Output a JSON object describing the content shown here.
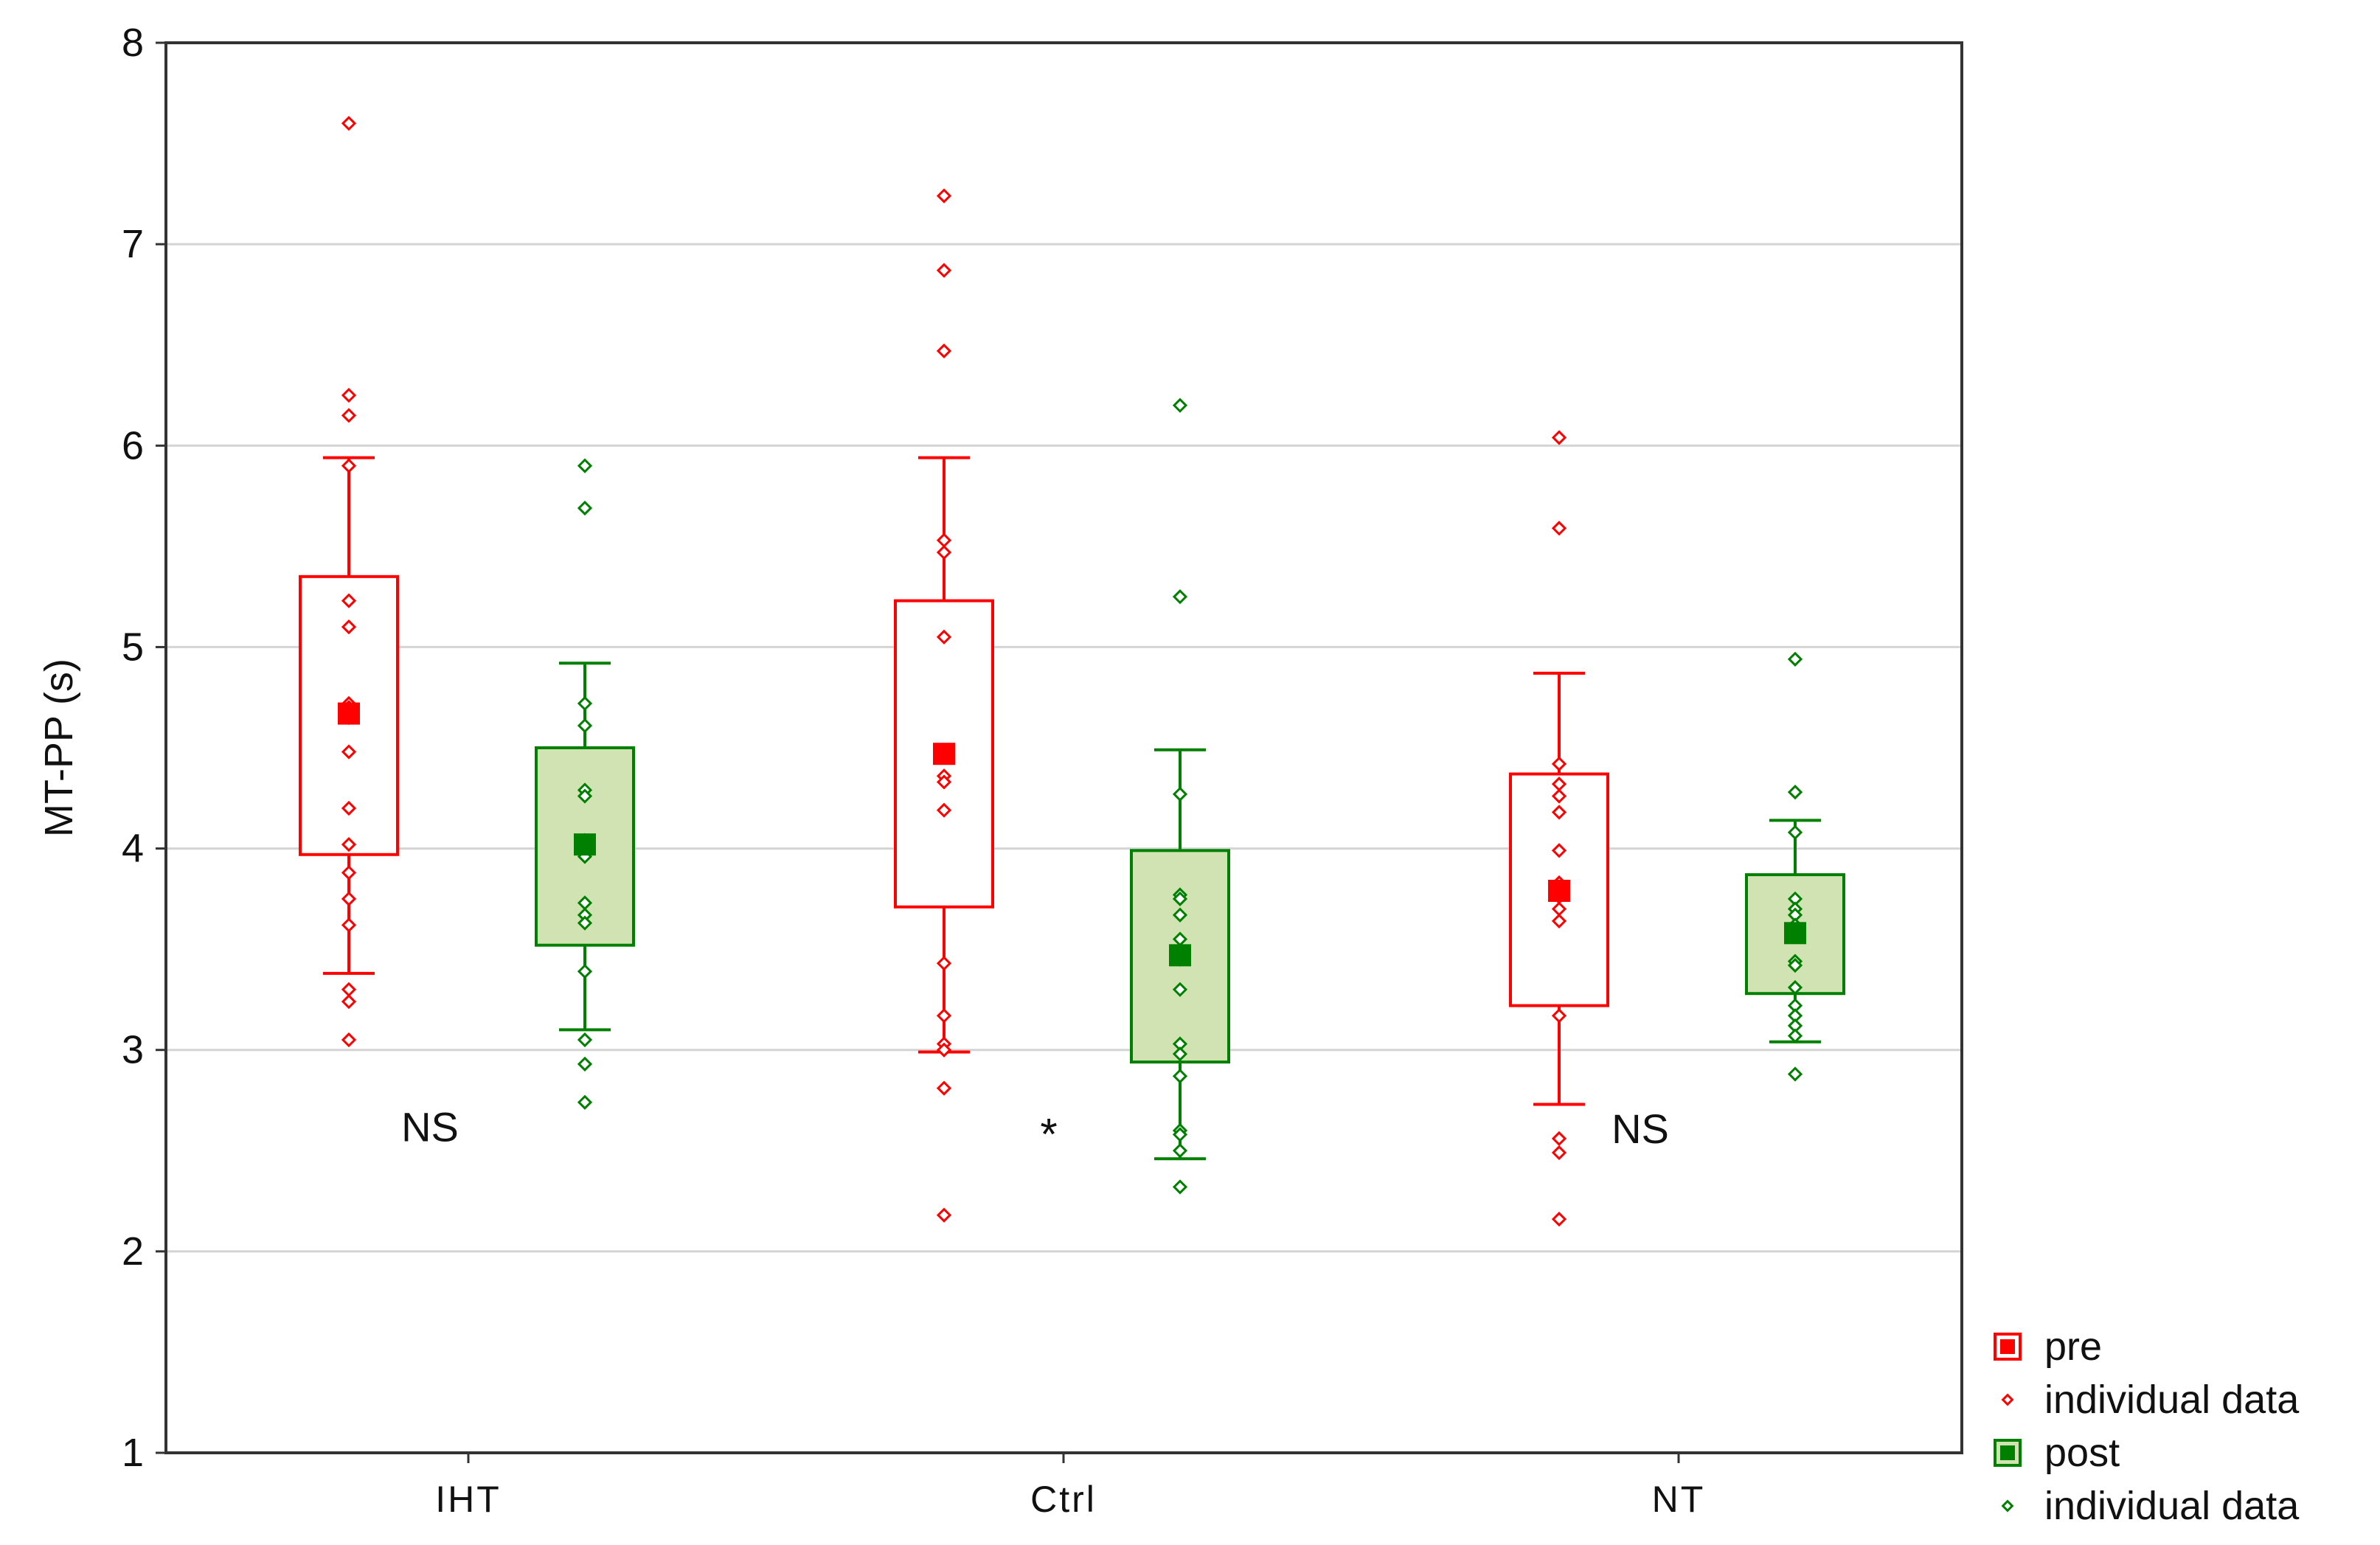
{
  "chart_data": {
    "type": "box",
    "ylabel": "MT-PP (s)",
    "xlabel": "",
    "ylim": [
      1,
      8
    ],
    "yticks": [
      "1",
      "2",
      "3",
      "4",
      "5",
      "6",
      "7",
      "8"
    ],
    "grid": "horizontal",
    "categories": [
      "IHT",
      "Ctrl",
      "NT"
    ],
    "series": [
      {
        "name": "pre",
        "color": "#ff0000",
        "fill": "#ffffff",
        "boxes": [
          {
            "group": "IHT",
            "mean": 4.67,
            "q1": 3.97,
            "q3": 5.35,
            "whisker_low": 3.38,
            "whisker_high": 5.94,
            "points": [
              7.6,
              6.25,
              6.15,
              5.9,
              5.23,
              5.1,
              4.72,
              4.7,
              4.65,
              4.48,
              4.2,
              4.02,
              3.88,
              3.75,
              3.62,
              3.3,
              3.24,
              3.05
            ]
          },
          {
            "group": "Ctrl",
            "mean": 4.47,
            "q1": 3.71,
            "q3": 5.23,
            "whisker_low": 2.99,
            "whisker_high": 5.94,
            "points": [
              7.24,
              6.87,
              6.47,
              5.53,
              5.47,
              5.05,
              4.36,
              4.33,
              4.19,
              3.43,
              3.17,
              3.03,
              3.0,
              2.81,
              2.18
            ]
          },
          {
            "group": "NT",
            "mean": 3.79,
            "q1": 3.22,
            "q3": 4.37,
            "whisker_low": 2.73,
            "whisker_high": 4.87,
            "points": [
              6.04,
              5.59,
              4.42,
              4.32,
              4.26,
              4.18,
              3.99,
              3.83,
              3.76,
              3.7,
              3.64,
              3.17,
              2.56,
              2.49,
              2.16
            ]
          }
        ]
      },
      {
        "name": "post",
        "color": "#008000",
        "fill": "#d2e3b3",
        "boxes": [
          {
            "group": "IHT",
            "mean": 4.02,
            "q1": 3.52,
            "q3": 4.5,
            "whisker_low": 3.1,
            "whisker_high": 4.92,
            "points": [
              5.9,
              5.69,
              4.72,
              4.61,
              4.29,
              4.26,
              4.04,
              3.96,
              3.73,
              3.67,
              3.63,
              3.39,
              3.05,
              2.93,
              2.74
            ]
          },
          {
            "group": "Ctrl",
            "mean": 3.47,
            "q1": 2.94,
            "q3": 3.99,
            "whisker_low": 2.46,
            "whisker_high": 4.49,
            "points": [
              6.2,
              5.25,
              4.27,
              3.77,
              3.75,
              3.67,
              3.55,
              3.45,
              3.3,
              3.03,
              2.98,
              2.87,
              2.6,
              2.58,
              2.5,
              2.32
            ]
          },
          {
            "group": "NT",
            "mean": 3.58,
            "q1": 3.28,
            "q3": 3.87,
            "whisker_low": 3.04,
            "whisker_high": 4.14,
            "points": [
              4.94,
              4.28,
              4.08,
              3.75,
              3.7,
              3.67,
              3.62,
              3.44,
              3.42,
              3.31,
              3.22,
              3.17,
              3.12,
              3.07,
              2.88
            ]
          }
        ]
      }
    ],
    "annotations": [
      {
        "group": "IHT",
        "text": "NS",
        "y": 2.62
      },
      {
        "group": "Ctrl",
        "text": "*",
        "y": 2.58
      },
      {
        "group": "NT",
        "text": "NS",
        "y": 2.61
      }
    ],
    "legend": {
      "position": "bottom-right",
      "entries": [
        {
          "label": "pre",
          "marker": "filled-square",
          "color": "#ff0000"
        },
        {
          "label": "individual data",
          "marker": "small-diamond",
          "color": "#ff0000"
        },
        {
          "label": "post",
          "marker": "filled-square",
          "color": "#008000"
        },
        {
          "label": "individual data",
          "marker": "small-diamond",
          "color": "#008000"
        }
      ]
    }
  }
}
